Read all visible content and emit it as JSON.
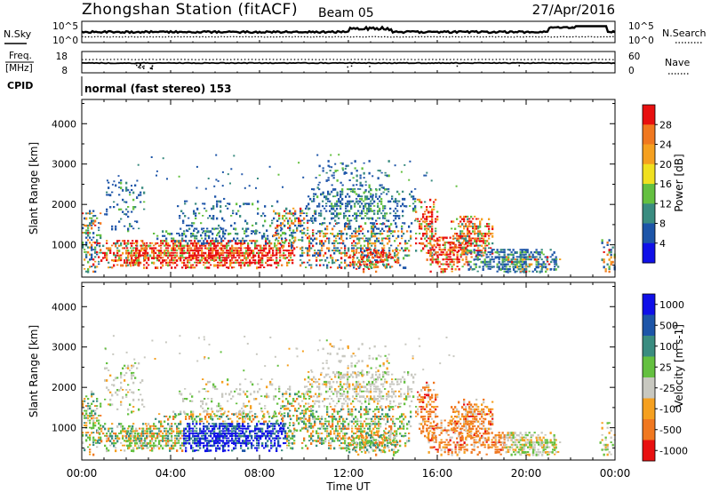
{
  "header": {
    "station": "Zhongshan Station (fitACF)",
    "beam": "Beam 05",
    "date": "27/Apr/2016"
  },
  "noise_panel": {
    "left_label": "N.Sky",
    "left_ticks": [
      "10^5",
      "10^0"
    ],
    "right_label": "N.Search",
    "right_ticks": [
      "10^5",
      "10^0"
    ]
  },
  "freq_panel": {
    "left_label_1": "Freq.",
    "left_label_2": "[MHz]",
    "left_ticks": [
      "18",
      "8"
    ],
    "right_label": "Nave",
    "right_ticks": [
      "60",
      "0"
    ]
  },
  "cpid": {
    "label": "CPID",
    "value": "normal (fast stereo) 153"
  },
  "colors": {
    "power_scale": [
      "#1010e8",
      "#1d55a8",
      "#3a8c80",
      "#64c040",
      "#f0e020",
      "#f5a020",
      "#f07820",
      "#e81010"
    ],
    "velocity_scale": [
      "#e81010",
      "#f07820",
      "#f5a020",
      "#c8c8c0",
      "#64c040",
      "#3a8c80",
      "#1d55a8",
      "#1010e8"
    ],
    "frame": "#000000"
  },
  "chart_data": [
    {
      "type": "heatmap",
      "ylabel": "Slant Range [km]",
      "yticks": [
        "1000",
        "2000",
        "3000",
        "4000"
      ],
      "ylim": [
        200,
        4600
      ],
      "xlim": [
        0,
        24
      ],
      "colorbar": {
        "label": "Power [dB]",
        "ticks": [
          "4",
          "8",
          "12",
          "16",
          "20",
          "24",
          "28"
        ],
        "range": [
          0,
          32
        ]
      }
    },
    {
      "type": "heatmap",
      "ylabel": "Slant Range [km]",
      "yticks": [
        "1000",
        "2000",
        "3000",
        "4000"
      ],
      "ylim": [
        200,
        4600
      ],
      "xlim": [
        0,
        24
      ],
      "xticks": [
        "00:00",
        "04:00",
        "08:00",
        "12:00",
        "16:00",
        "20:00",
        "00:00"
      ],
      "xlabel": "Time UT",
      "colorbar": {
        "label": "Velocity [m s-1]",
        "ticks": [
          "1000",
          "500",
          "100",
          "25",
          "-25",
          "-100",
          "-500",
          "-1000"
        ],
        "range": [
          -1000,
          1000
        ]
      }
    }
  ]
}
